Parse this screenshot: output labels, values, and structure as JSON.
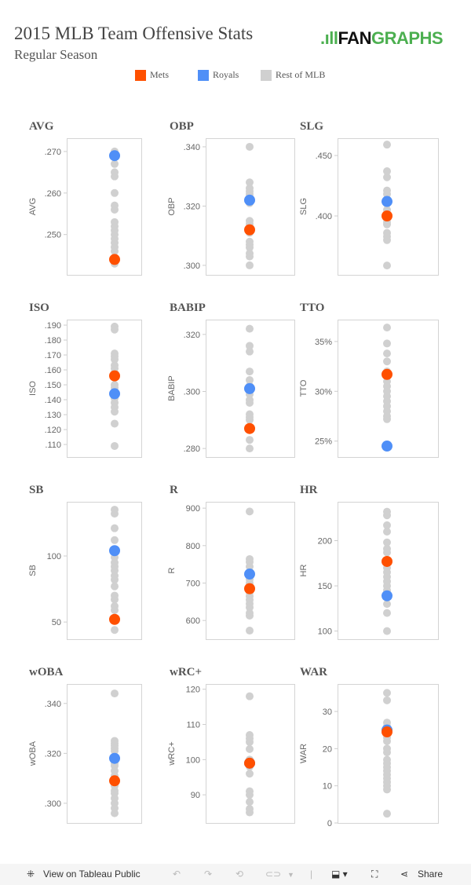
{
  "header": {
    "title": "2015 MLB Team Offensive Stats",
    "subtitle": "Regular Season",
    "logo_text": "FANGRAPHS"
  },
  "legend": [
    {
      "label": "Mets",
      "color": "#ff5000"
    },
    {
      "label": "Royals",
      "color": "#4f8ff7"
    },
    {
      "label": "Rest of MLB",
      "color": "#d0d0d0"
    }
  ],
  "footer": {
    "view_label": "View on Tableau Public",
    "share_label": "Share"
  },
  "chart_data": [
    {
      "type": "scatter",
      "title": "AVG",
      "ylabel": "AVG",
      "ylim": [
        0.2403,
        0.2732
      ],
      "ticks": [
        {
          "v": 0.27,
          "t": ".270"
        },
        {
          "v": 0.26,
          "t": ".260"
        },
        {
          "v": 0.25,
          "t": ".250"
        }
      ],
      "rest": [
        0.27,
        0.267,
        0.265,
        0.264,
        0.26,
        0.257,
        0.256,
        0.253,
        0.252,
        0.251,
        0.25,
        0.249,
        0.248,
        0.247,
        0.246,
        0.244,
        0.243
      ],
      "mets": 0.244,
      "royals": 0.269
    },
    {
      "type": "scatter",
      "title": "OBP",
      "ylabel": "OBP",
      "ylim": [
        0.2968,
        0.3429
      ],
      "ticks": [
        {
          "v": 0.34,
          "t": ".340"
        },
        {
          "v": 0.32,
          "t": ".320"
        },
        {
          "v": 0.3,
          "t": ".300"
        }
      ],
      "rest": [
        0.34,
        0.328,
        0.326,
        0.325,
        0.324,
        0.321,
        0.315,
        0.314,
        0.311,
        0.308,
        0.307,
        0.306,
        0.304,
        0.303,
        0.3
      ],
      "mets": 0.312,
      "royals": 0.322
    },
    {
      "type": "scatter",
      "title": "SLG",
      "ylabel": "SLG",
      "ylim": [
        0.3513,
        0.4643
      ],
      "ticks": [
        {
          "v": 0.45,
          "t": ".450"
        },
        {
          "v": 0.4,
          "t": ".400"
        }
      ],
      "rest": [
        0.459,
        0.437,
        0.432,
        0.421,
        0.418,
        0.41,
        0.405,
        0.398,
        0.395,
        0.393,
        0.386,
        0.383,
        0.38,
        0.359
      ],
      "mets": 0.4,
      "royals": 0.412
    },
    {
      "type": "scatter",
      "title": "ISO",
      "ylabel": "ISO",
      "ylim": [
        0.1016,
        0.1937
      ],
      "ticks": [
        {
          "v": 0.19,
          "t": ".190"
        },
        {
          "v": 0.18,
          "t": ".180"
        },
        {
          "v": 0.17,
          "t": ".170"
        },
        {
          "v": 0.16,
          "t": ".160"
        },
        {
          "v": 0.15,
          "t": ".150"
        },
        {
          "v": 0.14,
          "t": ".140"
        },
        {
          "v": 0.13,
          "t": ".130"
        },
        {
          "v": 0.12,
          "t": ".120"
        },
        {
          "v": 0.11,
          "t": ".110"
        }
      ],
      "rest": [
        0.189,
        0.187,
        0.171,
        0.169,
        0.167,
        0.163,
        0.161,
        0.158,
        0.15,
        0.148,
        0.141,
        0.138,
        0.135,
        0.132,
        0.124,
        0.109
      ],
      "mets": 0.156,
      "royals": 0.144
    },
    {
      "type": "scatter",
      "title": "BABIP",
      "ylabel": "BABIP",
      "ylim": [
        0.277,
        0.3252
      ],
      "ticks": [
        {
          "v": 0.32,
          "t": ".320"
        },
        {
          "v": 0.3,
          "t": ".300"
        },
        {
          "v": 0.28,
          "t": ".280"
        }
      ],
      "rest": [
        0.322,
        0.316,
        0.314,
        0.307,
        0.304,
        0.302,
        0.299,
        0.297,
        0.296,
        0.292,
        0.291,
        0.29,
        0.283,
        0.28
      ],
      "mets": 0.287,
      "royals": 0.301
    },
    {
      "type": "scatter",
      "title": "TTO",
      "ylabel": "TTO",
      "ylim": [
        23.4,
        37.2
      ],
      "ticks": [
        {
          "v": 35,
          "t": "35%"
        },
        {
          "v": 30,
          "t": "30%"
        },
        {
          "v": 25,
          "t": "25%"
        }
      ],
      "rest": [
        36.4,
        34.8,
        33.8,
        33.0,
        32.0,
        31.0,
        30.5,
        30.0,
        29.5,
        29.0,
        28.5,
        28.0,
        27.5,
        27.2
      ],
      "mets": 31.7,
      "royals": 24.5
    },
    {
      "type": "scatter",
      "title": "SB",
      "ylabel": "SB",
      "ylim": [
        37,
        141
      ],
      "ticks": [
        {
          "v": 100,
          "t": "100"
        },
        {
          "v": 50,
          "t": "50"
        }
      ],
      "rest": [
        135,
        132,
        121,
        112,
        99,
        95,
        92,
        89,
        85,
        82,
        77,
        70,
        67,
        62,
        59,
        44
      ],
      "mets": 52,
      "royals": 104
    },
    {
      "type": "scatter",
      "title": "R",
      "ylabel": "R",
      "ylim": [
        550,
        917
      ],
      "ticks": [
        {
          "v": 900,
          "t": "900"
        },
        {
          "v": 800,
          "t": "800"
        },
        {
          "v": 700,
          "t": "700"
        },
        {
          "v": 600,
          "t": "600"
        }
      ],
      "rest": [
        891,
        764,
        756,
        744,
        720,
        710,
        700,
        690,
        675,
        665,
        655,
        645,
        635,
        620,
        613,
        573
      ],
      "mets": 685,
      "royals": 724
    },
    {
      "type": "scatter",
      "title": "HR",
      "ylabel": "HR",
      "ylim": [
        91,
        243
      ],
      "ticks": [
        {
          "v": 200,
          "t": "200"
        },
        {
          "v": 150,
          "t": "150"
        },
        {
          "v": 100,
          "t": "100"
        }
      ],
      "rest": [
        232,
        228,
        217,
        210,
        198,
        191,
        187,
        175,
        170,
        165,
        160,
        155,
        150,
        145,
        130,
        120,
        100
      ],
      "mets": 177,
      "royals": 139
    },
    {
      "type": "scatter",
      "title": "wOBA",
      "ylabel": "wOBA",
      "ylim": [
        0.2921,
        0.3478
      ],
      "ticks": [
        {
          "v": 0.34,
          "t": ".340"
        },
        {
          "v": 0.32,
          "t": ".320"
        },
        {
          "v": 0.3,
          "t": ".300"
        }
      ],
      "rest": [
        0.344,
        0.325,
        0.324,
        0.323,
        0.322,
        0.321,
        0.316,
        0.315,
        0.313,
        0.311,
        0.307,
        0.305,
        0.304,
        0.302,
        0.3,
        0.298,
        0.296
      ],
      "mets": 0.309,
      "royals": 0.318
    },
    {
      "type": "scatter",
      "title": "wRC+",
      "ylabel": "wRC+",
      "ylim": [
        82,
        121.5
      ],
      "ticks": [
        {
          "v": 120,
          "t": "120"
        },
        {
          "v": 110,
          "t": "110"
        },
        {
          "v": 100,
          "t": "100"
        },
        {
          "v": 90,
          "t": "90"
        }
      ],
      "rest": [
        118,
        107,
        106,
        105,
        103,
        100,
        98,
        96,
        91,
        90,
        88,
        86,
        85
      ],
      "mets": 99,
      "royals": 99
    },
    {
      "type": "scatter",
      "title": "WAR",
      "ylabel": "WAR",
      "ylim": [
        0,
        37.4
      ],
      "ticks": [
        {
          "v": 30,
          "t": "30"
        },
        {
          "v": 20,
          "t": "20"
        },
        {
          "v": 10,
          "t": "10"
        },
        {
          "v": 0,
          "t": "0"
        }
      ],
      "rest": [
        35,
        33,
        27,
        26,
        23,
        22,
        20,
        19,
        17,
        16,
        15,
        14,
        13,
        12,
        11,
        10,
        9,
        2.5
      ],
      "mets": 24.5,
      "royals": 25
    }
  ]
}
